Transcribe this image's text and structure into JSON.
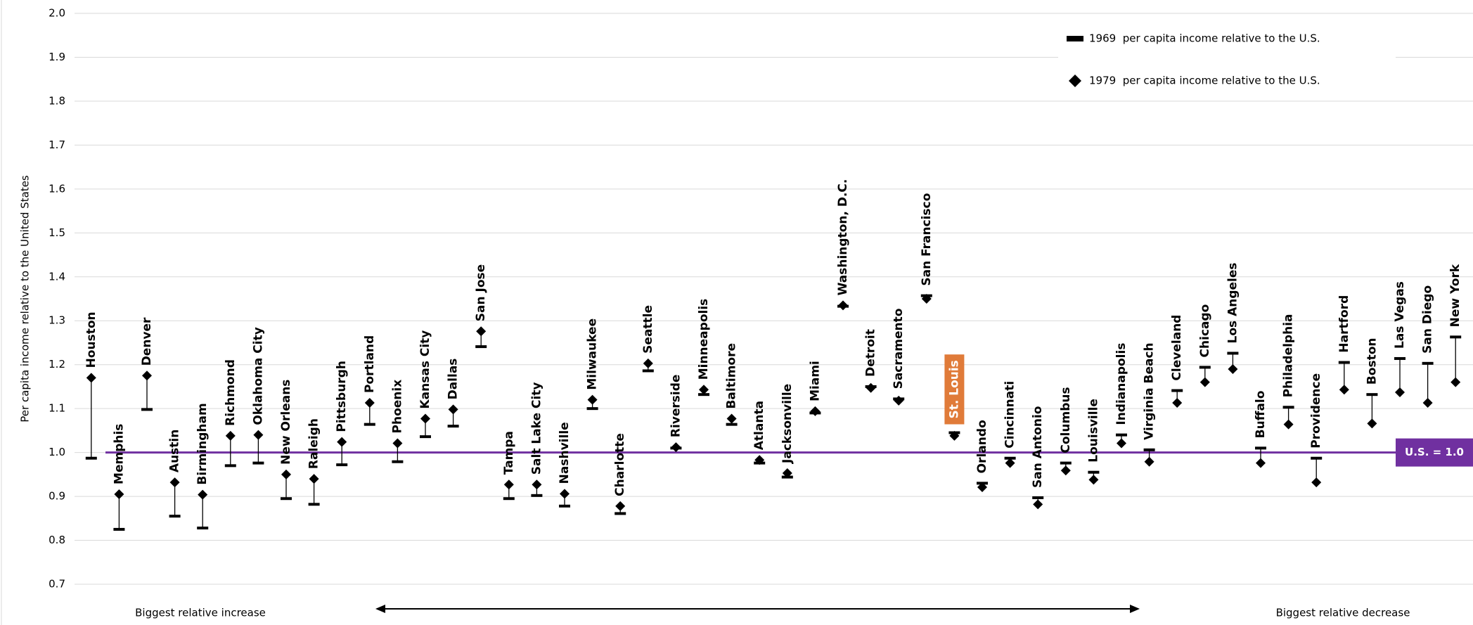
{
  "chart_data": {
    "type": "dumbbell",
    "y_label": "Per capita income relative to the United States",
    "categories": [
      "Houston",
      "Memphis",
      "Denver",
      "Austin",
      "Birmingham",
      "Richmond",
      "Oklahoma City",
      "New Orleans",
      "Raleigh",
      "Pittsburgh",
      "Portland",
      "Phoenix",
      "Kansas City",
      "Dallas",
      "San Jose",
      "Tampa",
      "Salt Lake City",
      "Nashville",
      "Milwaukee",
      "Charlotte",
      "Seattle",
      "Riverside",
      "Minneapolis",
      "Baltimore",
      "Atlanta",
      "Jacksonville",
      "Miami",
      "Washington, D.C.",
      "Detroit",
      "Sacramento",
      "San Francisco",
      "St. Louis",
      "Orlando",
      "Cincinnati",
      "San Antonio",
      "Columbus",
      "Louisville",
      "Indianapolis",
      "Virginia Beach",
      "Cleveland",
      "Chicago",
      "Los Angeles",
      "Buffalo",
      "Philadelphia",
      "Providence",
      "Hartford",
      "Boston",
      "Las Vegas",
      "San Diego",
      "New York"
    ],
    "series": [
      {
        "name": "1969  per capita income relative to the U.S.",
        "color": "#000000",
        "marker": "dash",
        "values": [
          0.987,
          0.825,
          1.098,
          0.855,
          0.828,
          0.97,
          0.976,
          0.895,
          0.882,
          0.972,
          1.064,
          0.979,
          1.036,
          1.06,
          1.241,
          0.895,
          0.902,
          0.878,
          1.1,
          0.861,
          1.186,
          1.01,
          1.132,
          1.064,
          0.976,
          0.944,
          1.09,
          1.333,
          1.15,
          1.122,
          1.357,
          1.045,
          0.93,
          0.987,
          0.897,
          0.976,
          0.955,
          1.04,
          1.006,
          1.141,
          1.194,
          1.226,
          1.01,
          1.103,
          0.987,
          1.205,
          1.132,
          1.214,
          1.203,
          1.263
        ]
      },
      {
        "name": "1979  per capita income relative to the U.S.",
        "color": "#000000",
        "marker": "diamond",
        "values": [
          1.17,
          0.905,
          1.175,
          0.932,
          0.904,
          1.038,
          1.04,
          0.95,
          0.94,
          1.024,
          1.113,
          1.021,
          1.077,
          1.098,
          1.276,
          0.927,
          0.927,
          0.906,
          1.12,
          0.878,
          1.203,
          1.012,
          1.143,
          1.077,
          0.983,
          0.953,
          1.094,
          1.335,
          1.147,
          1.118,
          1.35,
          1.038,
          0.921,
          0.976,
          0.882,
          0.959,
          0.938,
          1.021,
          0.979,
          1.113,
          1.16,
          1.19,
          0.976,
          1.064,
          0.932,
          1.143,
          1.066,
          1.137,
          1.113,
          1.16
        ]
      }
    ],
    "ylim": [
      0.7,
      2.0
    ],
    "yticks": [
      {
        "value": 0.7,
        "label": "0.7"
      },
      {
        "value": 0.8,
        "label": "0.8"
      },
      {
        "value": 0.9,
        "label": "0.9"
      },
      {
        "value": 1,
        "label": "1.0"
      },
      {
        "value": 1.1,
        "label": "1.1"
      },
      {
        "value": 1.2,
        "label": "1.2"
      },
      {
        "value": 1.3,
        "label": "1.3"
      },
      {
        "value": 1.4,
        "label": "1.4"
      },
      {
        "value": 1.5,
        "label": "1.5"
      },
      {
        "value": 1.6,
        "label": "1.6"
      },
      {
        "value": 1.7,
        "label": "1.7"
      },
      {
        "value": 1.8,
        "label": "1.8"
      },
      {
        "value": 1.9,
        "label": "1.9"
      },
      {
        "value": 2,
        "label": "2.0"
      }
    ],
    "grid": true,
    "legend": "top-right",
    "highlight": {
      "category_index": 31,
      "color": "#e07b39"
    },
    "reference_line": {
      "value": 1,
      "label": "U.S. = 1.0",
      "color": "#7030a0"
    },
    "annotations": [
      "Biggest relative increase",
      "Biggest relative decrease"
    ]
  }
}
